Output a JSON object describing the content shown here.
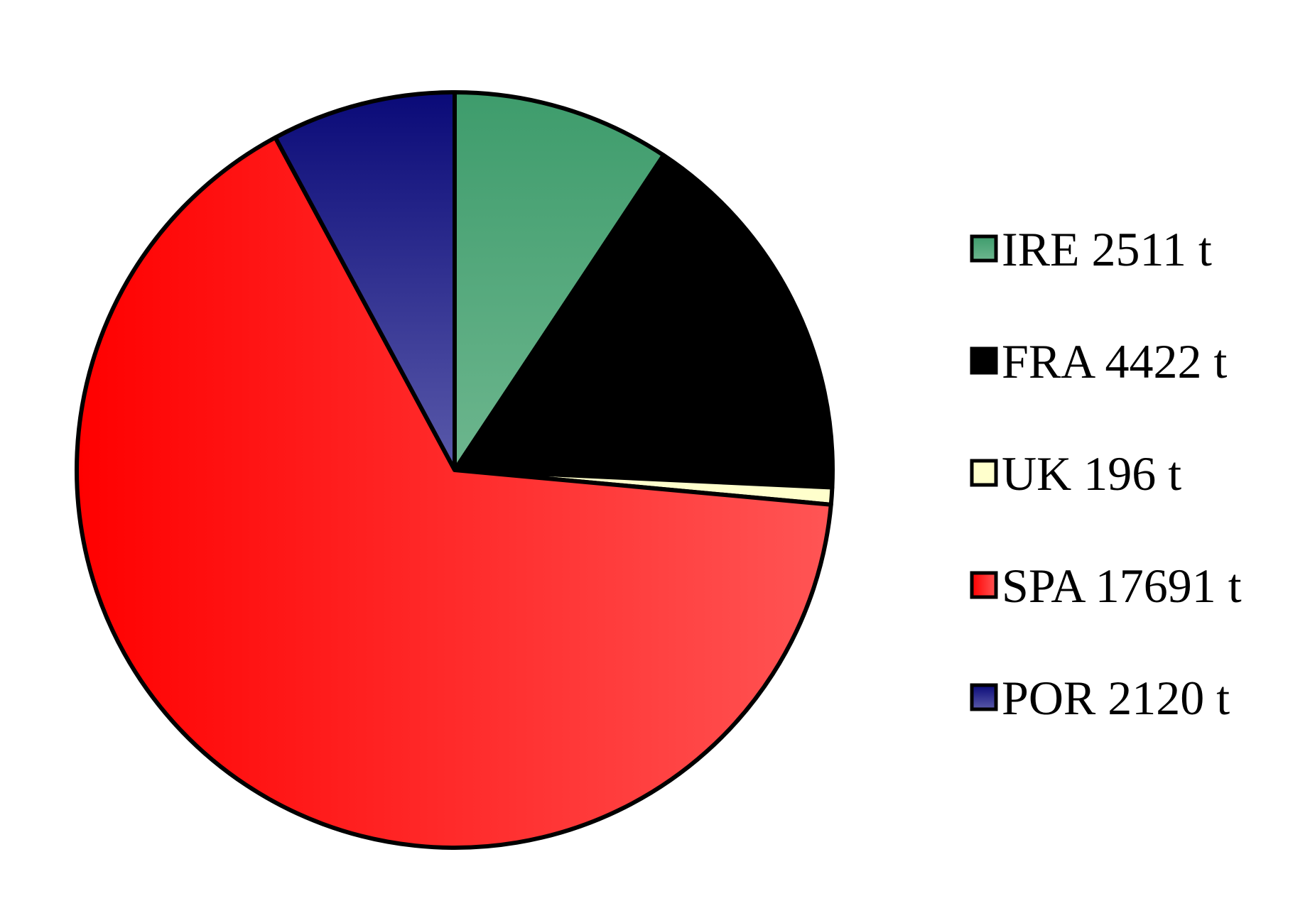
{
  "chart_data": {
    "type": "pie",
    "title": "",
    "unit": "t",
    "start_angle": "12 o'clock",
    "direction": "clockwise",
    "legend_position": "right",
    "slices": [
      {
        "label": "IRE 2511 t",
        "category": "IRE",
        "value": 2511,
        "color": "#3e9c6c",
        "color_light": "#6db68e"
      },
      {
        "label": "FRA 4422 t",
        "category": "FRA",
        "value": 4422,
        "color": "#000000",
        "color_light": "#000000"
      },
      {
        "label": "UK 196 t",
        "category": "UK",
        "value": 196,
        "color": "#ffffcc",
        "color_light": "#ffffcc"
      },
      {
        "label": "SPA 17691 t",
        "category": "SPA",
        "value": 17691,
        "color": "#ff0000",
        "color_light": "#ff5555"
      },
      {
        "label": "POR 2120 t",
        "category": "POR",
        "value": 2120,
        "color": "#0a0a78",
        "color_light": "#5a5aaa"
      }
    ]
  }
}
